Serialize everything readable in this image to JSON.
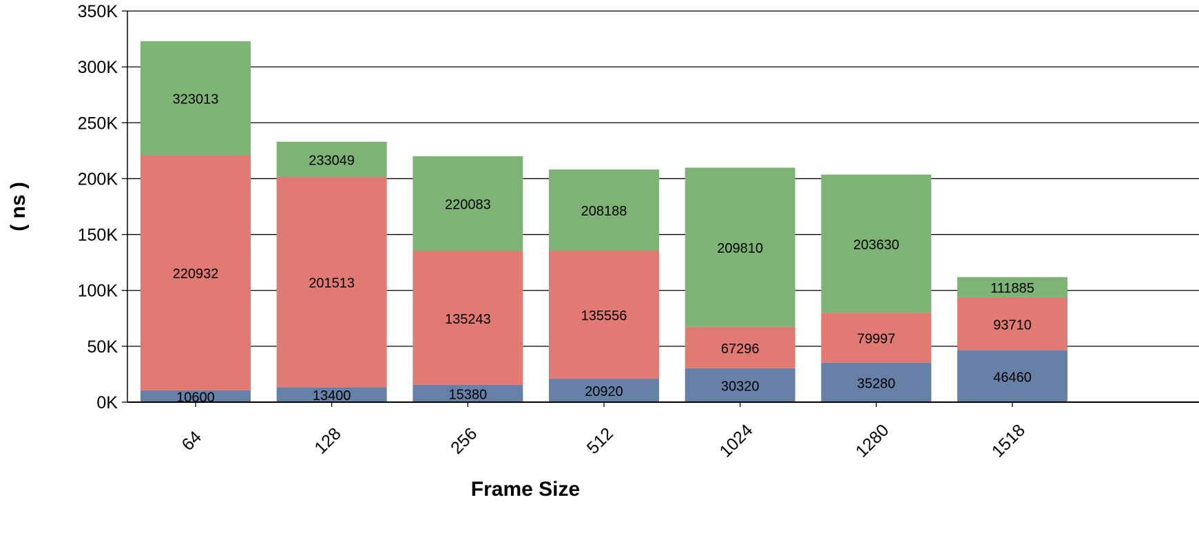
{
  "chart_data": {
    "type": "bar",
    "stacked": true,
    "xlabel": "Frame Size",
    "ylabel": "( ns )",
    "ylim": [
      0,
      350000
    ],
    "yticks": [
      0,
      50000,
      100000,
      150000,
      200000,
      250000,
      300000,
      350000
    ],
    "ytick_labels": [
      "0K",
      "50K",
      "100K",
      "150K",
      "200K",
      "250K",
      "300K",
      "350K"
    ],
    "grid": true,
    "categories": [
      "64",
      "128",
      "256",
      "512",
      "1024",
      "1280",
      "1518"
    ],
    "series": [
      {
        "color": "#6680a8",
        "values": [
          10600,
          13400,
          15380,
          20920,
          30320,
          35280,
          46460
        ],
        "labels": [
          "10600",
          "13400",
          "15380",
          "20920",
          "30320",
          "35280",
          "46460"
        ]
      },
      {
        "color": "#e07a73",
        "values": [
          210332,
          188113,
          119863,
          114636,
          36976,
          44717,
          47250
        ],
        "labels": [
          "220932",
          "201513",
          "135243",
          "135556",
          "67296",
          "79997",
          "93710"
        ]
      },
      {
        "color": "#7db375",
        "values": [
          102081,
          31536,
          84840,
          72632,
          142514,
          123633,
          18175
        ],
        "labels": [
          "323013",
          "233049",
          "220083",
          "208188",
          "209810",
          "203630",
          "111885"
        ]
      }
    ]
  }
}
